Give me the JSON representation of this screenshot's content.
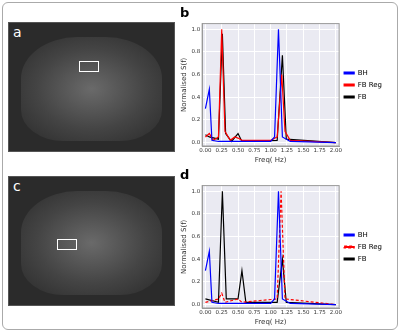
{
  "images": [
    {
      "label": "a"
    },
    {
      "label": "c"
    }
  ],
  "chart_data": [
    {
      "type": "line",
      "title": "b",
      "x_label": "Freq( Hz)",
      "y_label": "Normalised S(f)",
      "xlim": [
        -0.05,
        2.05
      ],
      "xticks": [
        {
          "value": 0,
          "label": "0.00"
        },
        {
          "value": 0.25,
          "label": "0.25"
        },
        {
          "value": 0.5,
          "label": "0.50"
        },
        {
          "value": 0.75,
          "label": "0.75"
        },
        {
          "value": 1,
          "label": "1.00"
        },
        {
          "value": 1.25,
          "label": "1.25"
        },
        {
          "value": 1.5,
          "label": "1.50"
        },
        {
          "value": 1.75,
          "label": "1.75"
        },
        {
          "value": 2,
          "label": "2.00"
        }
      ],
      "ylim": [
        -0.03,
        1.05
      ],
      "yticks": [
        {
          "value": 0,
          "label": "0.0"
        },
        {
          "value": 0.2,
          "label": "0.2"
        },
        {
          "value": 0.4,
          "label": "0.4"
        },
        {
          "value": 0.6,
          "label": "0.6"
        },
        {
          "value": 0.8,
          "label": "0.8"
        },
        {
          "value": 1,
          "label": "1.0"
        }
      ],
      "grid": true,
      "legend": "right",
      "series": [
        {
          "name": "BH",
          "color": "#0000ff",
          "line_style": "solid",
          "x": [
            0,
            0.06,
            0.1,
            0.2,
            0.5,
            1.0,
            1.06,
            1.12,
            1.18,
            1.3,
            2.0
          ],
          "values": [
            0.3,
            0.47,
            0.02,
            0.01,
            0.01,
            0.01,
            0.05,
            1.0,
            0.05,
            0.01,
            0.0
          ]
        },
        {
          "name": "FB Reg",
          "color": "#ff0000",
          "line_style": "solid",
          "x": [
            0,
            0.06,
            0.12,
            0.2,
            0.25,
            0.3,
            0.38,
            0.45,
            0.5,
            0.56,
            1.0,
            1.1,
            1.17,
            1.22,
            1.3,
            2.0
          ],
          "values": [
            0.05,
            0.08,
            0.02,
            0.05,
            1.0,
            0.1,
            0.02,
            0.05,
            0.04,
            0.02,
            0.02,
            0.05,
            0.6,
            0.1,
            0.02,
            0.0
          ]
        },
        {
          "name": "FB",
          "color": "#000000",
          "line_style": "solid",
          "x": [
            0,
            0.06,
            0.2,
            0.26,
            0.31,
            0.4,
            0.5,
            0.56,
            1.1,
            1.18,
            1.24,
            2.0
          ],
          "values": [
            0.07,
            0.05,
            0.03,
            0.96,
            0.08,
            0.01,
            0.08,
            0.01,
            0.02,
            0.77,
            0.03,
            0.0
          ]
        }
      ]
    },
    {
      "type": "line",
      "title": "d",
      "x_label": "Freq( Hz)",
      "y_label": "Normalised S(f)",
      "xlim": [
        -0.05,
        2.05
      ],
      "xticks": [
        {
          "value": 0,
          "label": "0.00"
        },
        {
          "value": 0.25,
          "label": "0.25"
        },
        {
          "value": 0.5,
          "label": "0.50"
        },
        {
          "value": 0.75,
          "label": "0.75"
        },
        {
          "value": 1,
          "label": "1.00"
        },
        {
          "value": 1.25,
          "label": "1.25"
        },
        {
          "value": 1.5,
          "label": "1.50"
        },
        {
          "value": 1.75,
          "label": "1.75"
        },
        {
          "value": 2,
          "label": "2.00"
        }
      ],
      "ylim": [
        -0.03,
        1.05
      ],
      "yticks": [
        {
          "value": 0,
          "label": "0.0"
        },
        {
          "value": 0.2,
          "label": "0.2"
        },
        {
          "value": 0.4,
          "label": "0.4"
        },
        {
          "value": 0.6,
          "label": "0.6"
        },
        {
          "value": 0.8,
          "label": "0.8"
        },
        {
          "value": 1,
          "label": "1.0"
        }
      ],
      "grid": true,
      "legend": "right",
      "series": [
        {
          "name": "BH",
          "color": "#0000ff",
          "line_style": "solid",
          "x": [
            0,
            0.06,
            0.1,
            0.2,
            0.5,
            1.0,
            1.06,
            1.12,
            1.18,
            1.3,
            2.0
          ],
          "values": [
            0.3,
            0.47,
            0.02,
            0.01,
            0.01,
            0.01,
            0.05,
            1.0,
            0.05,
            0.01,
            0.0
          ]
        },
        {
          "name": "FB Reg",
          "color": "#ff0000",
          "line_style": "dashed",
          "x": [
            0,
            0.2,
            0.25,
            0.3,
            0.5,
            0.56,
            1.1,
            1.16,
            1.22,
            2.0
          ],
          "values": [
            0.02,
            0.05,
            0.1,
            0.02,
            0.05,
            0.02,
            0.05,
            1.0,
            0.05,
            0.0
          ]
        },
        {
          "name": "FB",
          "color": "#000000",
          "line_style": "solid",
          "x": [
            0,
            0.2,
            0.26,
            0.32,
            0.5,
            0.56,
            0.62,
            1.1,
            1.18,
            1.24,
            2.0
          ],
          "values": [
            0.05,
            0.02,
            1.0,
            0.05,
            0.05,
            0.3,
            0.02,
            0.02,
            0.4,
            0.02,
            0.0
          ]
        }
      ]
    }
  ]
}
